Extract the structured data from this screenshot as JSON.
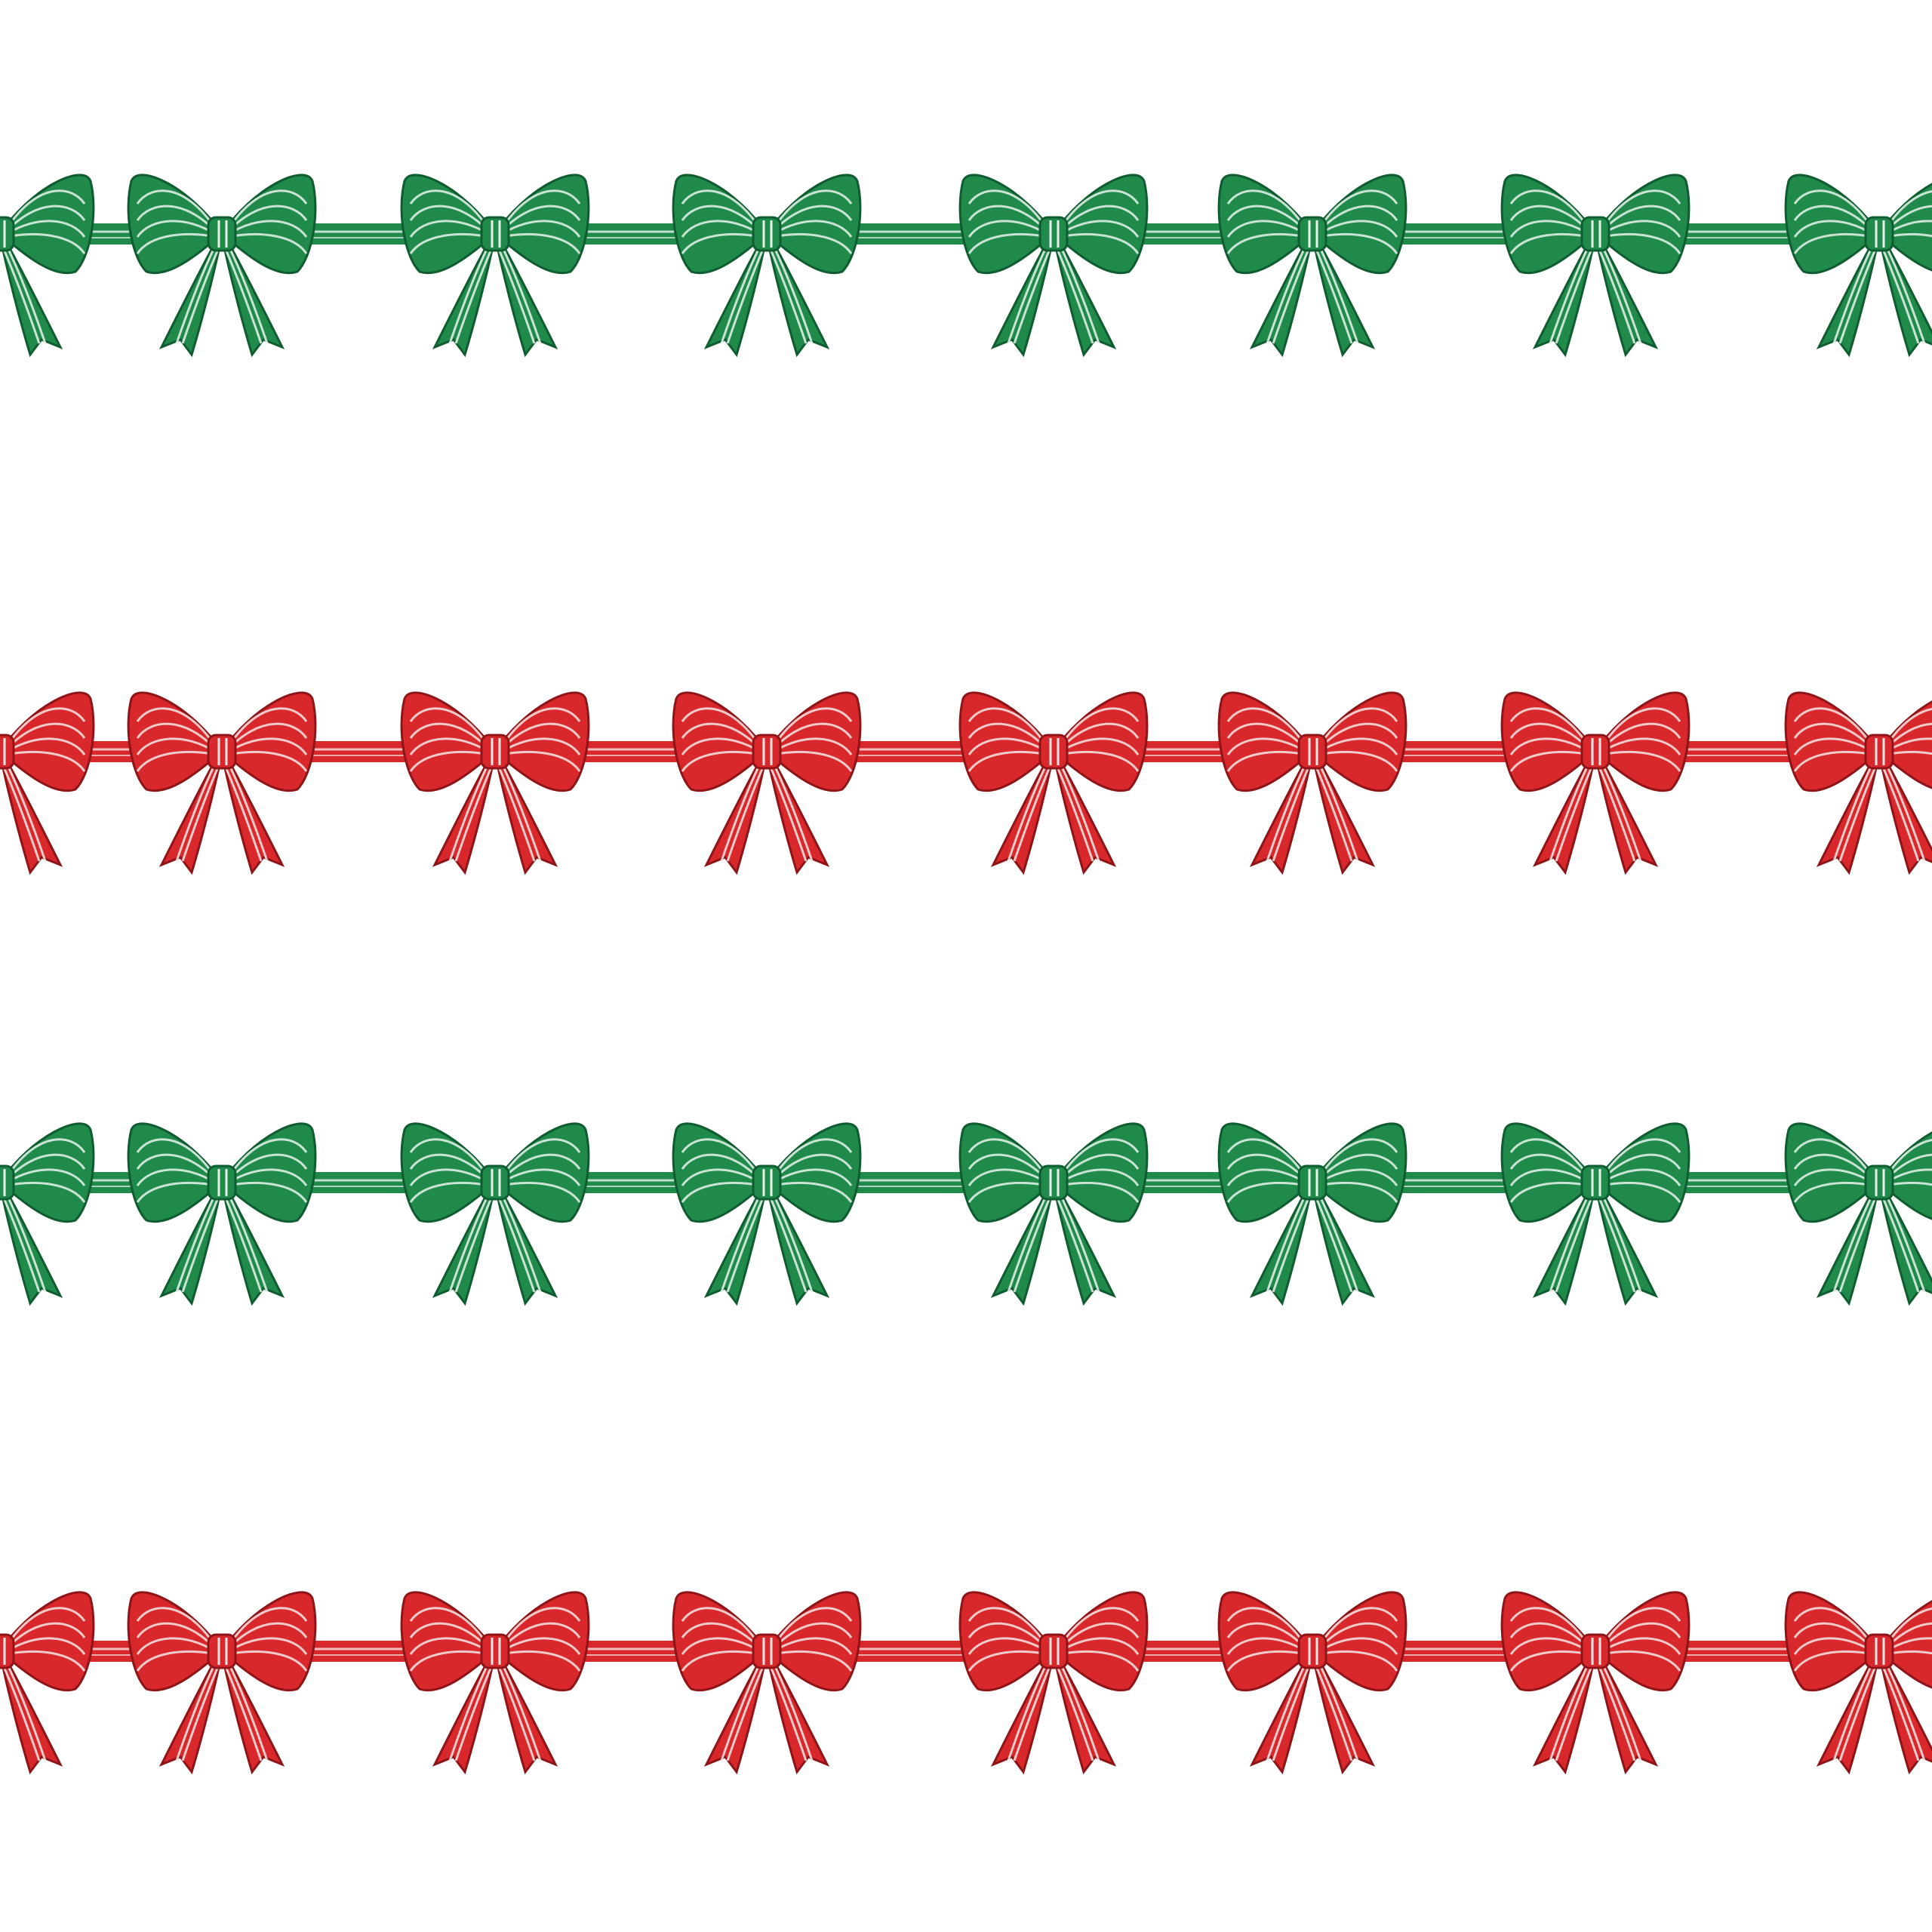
{
  "pattern": {
    "background": "#ffffff",
    "motif": "striped-ribbon-bow-garland",
    "rows": [
      {
        "color": "green",
        "fill": "#1f8a4a",
        "dark": "#0f5c30",
        "stripe": "#e8f3ec"
      },
      {
        "color": "red",
        "fill": "#d8282c",
        "dark": "#8e1418",
        "stripe": "#f6e6e6"
      },
      {
        "color": "green",
        "fill": "#1f8a4a",
        "dark": "#0f5c30",
        "stripe": "#e8f3ec"
      },
      {
        "color": "red",
        "fill": "#d8282c",
        "dark": "#8e1418",
        "stripe": "#f6e6e6"
      }
    ]
  }
}
